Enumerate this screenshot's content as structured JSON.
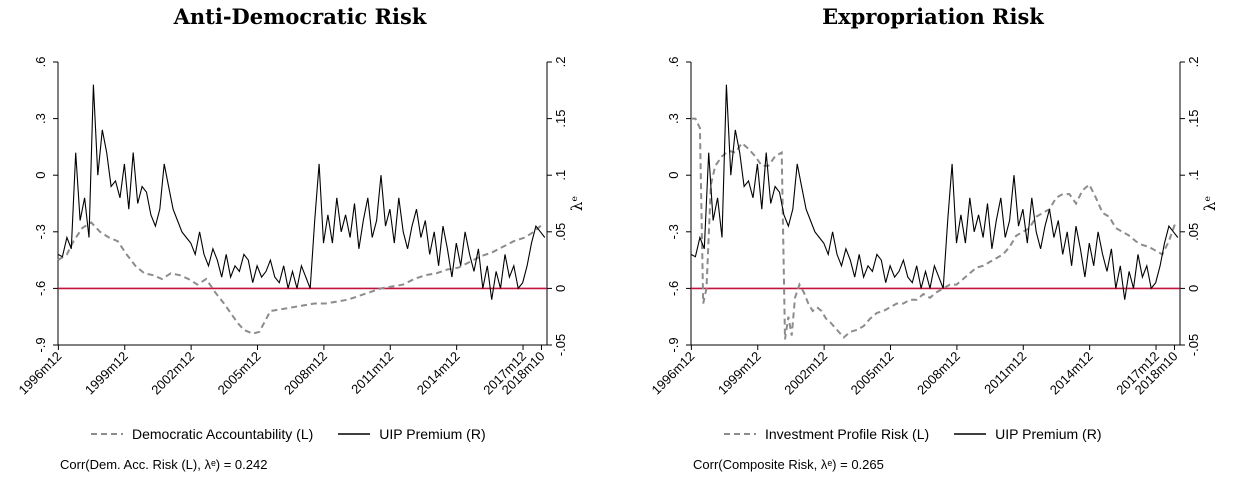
{
  "colors": {
    "uip": "#000000",
    "risk": "#8c8c8c",
    "zero_line": "#c0143c"
  },
  "chart_data": [
    {
      "type": "line",
      "title": "Anti-Democratic Risk",
      "x_ticks": [
        "1996m12",
        "1999m12",
        "2002m12",
        "2005m12",
        "2008m12",
        "2011m12",
        "2014m12",
        "2017m12",
        "2018m10"
      ],
      "xlim": [
        1996.9,
        2019.0
      ],
      "left_axis": {
        "ticks": [
          ".6",
          ".3",
          "0",
          "-.3",
          "-.6",
          "-.9"
        ],
        "ylim": [
          -0.9,
          0.6
        ]
      },
      "right_axis": {
        "label": "λᵉ",
        "ticks": [
          ".2",
          ".15",
          ".1",
          ".05",
          "0",
          "-.05"
        ],
        "ylim": [
          -0.05,
          0.2
        ]
      },
      "reference_line": {
        "axis": "right",
        "value": 0
      },
      "series": [
        {
          "name": "Democratic Accountability (L)",
          "axis": "left",
          "style": "dashed",
          "x": [
            1996.9,
            1997.3,
            1997.6,
            1998.0,
            1998.4,
            1998.8,
            1999.2,
            1999.6,
            2000.0,
            2000.4,
            2000.8,
            2001.2,
            2001.6,
            2002.0,
            2002.4,
            2002.8,
            2003.2,
            2003.6,
            2004.0,
            2004.4,
            2004.7,
            2005.0,
            2005.3,
            2005.7,
            2006.0,
            2006.5,
            2007.0,
            2007.5,
            2008.0,
            2008.5,
            2009.0,
            2009.5,
            2010.0,
            2010.5,
            2011.0,
            2011.5,
            2012.0,
            2012.5,
            2013.0,
            2013.5,
            2014.0,
            2014.5,
            2015.0,
            2015.5,
            2016.0,
            2016.5,
            2017.0,
            2017.5,
            2018.0,
            2018.4,
            2018.8
          ],
          "y": [
            -0.45,
            -0.42,
            -0.35,
            -0.28,
            -0.25,
            -0.3,
            -0.33,
            -0.35,
            -0.42,
            -0.48,
            -0.52,
            -0.53,
            -0.55,
            -0.52,
            -0.53,
            -0.55,
            -0.58,
            -0.55,
            -0.62,
            -0.68,
            -0.73,
            -0.78,
            -0.82,
            -0.84,
            -0.83,
            -0.72,
            -0.71,
            -0.7,
            -0.69,
            -0.68,
            -0.68,
            -0.67,
            -0.66,
            -0.64,
            -0.62,
            -0.6,
            -0.59,
            -0.58,
            -0.55,
            -0.53,
            -0.52,
            -0.5,
            -0.49,
            -0.46,
            -0.43,
            -0.41,
            -0.38,
            -0.35,
            -0.33,
            -0.3,
            -0.26
          ]
        },
        {
          "name": "UIP Premium (R)",
          "axis": "right",
          "style": "solid",
          "x": [
            1996.9,
            1997.1,
            1997.3,
            1997.5,
            1997.7,
            1997.9,
            1998.1,
            1998.3,
            1998.5,
            1998.7,
            1998.9,
            1999.1,
            1999.3,
            1999.5,
            1999.7,
            1999.9,
            2000.1,
            2000.3,
            2000.5,
            2000.7,
            2000.9,
            2001.1,
            2001.3,
            2001.5,
            2001.7,
            2001.9,
            2002.1,
            2002.3,
            2002.5,
            2002.7,
            2002.9,
            2003.1,
            2003.3,
            2003.5,
            2003.7,
            2003.9,
            2004.1,
            2004.3,
            2004.5,
            2004.7,
            2004.9,
            2005.1,
            2005.3,
            2005.5,
            2005.7,
            2005.9,
            2006.1,
            2006.3,
            2006.5,
            2006.7,
            2006.9,
            2007.1,
            2007.3,
            2007.5,
            2007.7,
            2007.9,
            2008.1,
            2008.3,
            2008.5,
            2008.7,
            2008.9,
            2009.1,
            2009.3,
            2009.5,
            2009.7,
            2009.9,
            2010.1,
            2010.3,
            2010.5,
            2010.7,
            2010.9,
            2011.1,
            2011.3,
            2011.5,
            2011.7,
            2011.9,
            2012.1,
            2012.3,
            2012.5,
            2012.7,
            2012.9,
            2013.1,
            2013.3,
            2013.5,
            2013.7,
            2013.9,
            2014.1,
            2014.3,
            2014.5,
            2014.7,
            2014.9,
            2015.1,
            2015.3,
            2015.5,
            2015.7,
            2015.9,
            2016.1,
            2016.3,
            2016.5,
            2016.7,
            2016.9,
            2017.1,
            2017.3,
            2017.5,
            2017.7,
            2017.9,
            2018.1,
            2018.3,
            2018.5,
            2018.7,
            2018.9
          ],
          "y": [
            0.03,
            0.028,
            0.045,
            0.035,
            0.12,
            0.06,
            0.08,
            0.045,
            0.18,
            0.1,
            0.14,
            0.12,
            0.09,
            0.095,
            0.08,
            0.11,
            0.07,
            0.12,
            0.075,
            0.09,
            0.085,
            0.065,
            0.055,
            0.07,
            0.11,
            0.09,
            0.07,
            0.06,
            0.05,
            0.045,
            0.04,
            0.03,
            0.05,
            0.03,
            0.02,
            0.035,
            0.025,
            0.01,
            0.03,
            0.01,
            0.02,
            0.015,
            0.03,
            0.025,
            0.005,
            0.02,
            0.01,
            0.015,
            0.025,
            0.01,
            0.005,
            0.02,
            0.0,
            0.015,
            0.0,
            0.02,
            0.01,
            0.0,
            0.06,
            0.11,
            0.04,
            0.065,
            0.04,
            0.08,
            0.05,
            0.065,
            0.045,
            0.075,
            0.035,
            0.06,
            0.08,
            0.045,
            0.06,
            0.1,
            0.055,
            0.07,
            0.04,
            0.08,
            0.05,
            0.035,
            0.055,
            0.07,
            0.045,
            0.06,
            0.03,
            0.05,
            0.02,
            0.055,
            0.035,
            0.01,
            0.04,
            0.02,
            0.05,
            0.03,
            0.015,
            0.035,
            0.0,
            0.02,
            -0.01,
            0.015,
            0.0,
            0.03,
            0.01,
            0.02,
            0.0,
            0.005,
            0.02,
            0.04,
            0.055,
            0.05,
            0.045
          ]
        }
      ],
      "legend": [
        "Democratic Accountability (L)",
        "UIP Premium (R)"
      ],
      "legend_position": "bottom",
      "note": "Corr(Dem. Acc. Risk (L), λᵉ) = 0.242"
    },
    {
      "type": "line",
      "title": "Expropriation Risk",
      "x_ticks": [
        "1996m12",
        "1999m12",
        "2002m12",
        "2005m12",
        "2008m12",
        "2011m12",
        "2014m12",
        "2017m12",
        "2018m10"
      ],
      "xlim": [
        1996.9,
        2019.0
      ],
      "left_axis": {
        "ticks": [
          ".6",
          ".3",
          "0",
          "-.3",
          "-.6",
          "-.9"
        ],
        "ylim": [
          -0.9,
          0.6
        ]
      },
      "right_axis": {
        "label": "λᵉ",
        "ticks": [
          ".2",
          ".15",
          ".1",
          ".05",
          "0",
          "-.05"
        ],
        "ylim": [
          -0.05,
          0.2
        ]
      },
      "reference_line": {
        "axis": "right",
        "value": 0
      },
      "series": [
        {
          "name": "Investment Profile Risk (L)",
          "axis": "left",
          "style": "dashed",
          "x": [
            1996.9,
            1997.1,
            1997.3,
            1997.45,
            1997.6,
            1997.8,
            1998.0,
            1998.3,
            1998.6,
            1998.9,
            1999.2,
            1999.5,
            1999.8,
            2000.1,
            2000.4,
            2000.7,
            2001.0,
            2001.15,
            2001.3,
            2001.45,
            2001.6,
            2001.8,
            2002.0,
            2002.2,
            2002.4,
            2002.6,
            2002.8,
            2003.0,
            2003.2,
            2003.5,
            2003.8,
            2004.1,
            2004.4,
            2004.7,
            2005.0,
            2005.3,
            2005.6,
            2005.9,
            2006.2,
            2006.5,
            2006.8,
            2007.1,
            2007.4,
            2007.7,
            2008.0,
            2008.3,
            2008.6,
            2008.9,
            2009.2,
            2009.5,
            2009.8,
            2010.1,
            2010.4,
            2010.7,
            2011.0,
            2011.3,
            2011.6,
            2011.9,
            2012.2,
            2012.5,
            2012.8,
            2013.1,
            2013.4,
            2013.7,
            2014.0,
            2014.3,
            2014.6,
            2014.9,
            2015.2,
            2015.5,
            2015.8,
            2016.1,
            2016.4,
            2016.7,
            2017.0,
            2017.3,
            2017.6,
            2017.9,
            2018.2,
            2018.5,
            2018.8
          ],
          "y": [
            0.3,
            0.3,
            0.25,
            -0.68,
            -0.6,
            -0.05,
            0.05,
            0.1,
            0.13,
            0.12,
            0.17,
            0.14,
            0.1,
            0.05,
            0.05,
            0.1,
            0.12,
            -0.87,
            -0.75,
            -0.85,
            -0.65,
            -0.58,
            -0.62,
            -0.68,
            -0.72,
            -0.7,
            -0.72,
            -0.76,
            -0.78,
            -0.82,
            -0.86,
            -0.83,
            -0.82,
            -0.8,
            -0.76,
            -0.73,
            -0.72,
            -0.7,
            -0.68,
            -0.68,
            -0.66,
            -0.66,
            -0.63,
            -0.65,
            -0.62,
            -0.6,
            -0.58,
            -0.58,
            -0.55,
            -0.52,
            -0.49,
            -0.48,
            -0.46,
            -0.44,
            -0.42,
            -0.38,
            -0.32,
            -0.3,
            -0.28,
            -0.22,
            -0.2,
            -0.18,
            -0.12,
            -0.1,
            -0.1,
            -0.15,
            -0.08,
            -0.05,
            -0.12,
            -0.2,
            -0.22,
            -0.28,
            -0.3,
            -0.32,
            -0.35,
            -0.37,
            -0.38,
            -0.4,
            -0.42,
            -0.35,
            -0.25
          ]
        },
        {
          "name": "UIP Premium (R)",
          "axis": "right",
          "style": "solid",
          "x": [
            1996.9,
            1997.1,
            1997.3,
            1997.5,
            1997.7,
            1997.9,
            1998.1,
            1998.3,
            1998.5,
            1998.7,
            1998.9,
            1999.1,
            1999.3,
            1999.5,
            1999.7,
            1999.9,
            2000.1,
            2000.3,
            2000.5,
            2000.7,
            2000.9,
            2001.1,
            2001.3,
            2001.5,
            2001.7,
            2001.9,
            2002.1,
            2002.3,
            2002.5,
            2002.7,
            2002.9,
            2003.1,
            2003.3,
            2003.5,
            2003.7,
            2003.9,
            2004.1,
            2004.3,
            2004.5,
            2004.7,
            2004.9,
            2005.1,
            2005.3,
            2005.5,
            2005.7,
            2005.9,
            2006.1,
            2006.3,
            2006.5,
            2006.7,
            2006.9,
            2007.1,
            2007.3,
            2007.5,
            2007.7,
            2007.9,
            2008.1,
            2008.3,
            2008.5,
            2008.7,
            2008.9,
            2009.1,
            2009.3,
            2009.5,
            2009.7,
            2009.9,
            2010.1,
            2010.3,
            2010.5,
            2010.7,
            2010.9,
            2011.1,
            2011.3,
            2011.5,
            2011.7,
            2011.9,
            2012.1,
            2012.3,
            2012.5,
            2012.7,
            2012.9,
            2013.1,
            2013.3,
            2013.5,
            2013.7,
            2013.9,
            2014.1,
            2014.3,
            2014.5,
            2014.7,
            2014.9,
            2015.1,
            2015.3,
            2015.5,
            2015.7,
            2015.9,
            2016.1,
            2016.3,
            2016.5,
            2016.7,
            2016.9,
            2017.1,
            2017.3,
            2017.5,
            2017.7,
            2017.9,
            2018.1,
            2018.3,
            2018.5,
            2018.7,
            2018.9
          ],
          "y": [
            0.03,
            0.028,
            0.045,
            0.035,
            0.12,
            0.06,
            0.08,
            0.045,
            0.18,
            0.1,
            0.14,
            0.12,
            0.09,
            0.095,
            0.08,
            0.11,
            0.07,
            0.12,
            0.075,
            0.09,
            0.085,
            0.065,
            0.055,
            0.07,
            0.11,
            0.09,
            0.07,
            0.06,
            0.05,
            0.045,
            0.04,
            0.03,
            0.05,
            0.03,
            0.02,
            0.035,
            0.025,
            0.01,
            0.03,
            0.01,
            0.02,
            0.015,
            0.03,
            0.025,
            0.005,
            0.02,
            0.01,
            0.015,
            0.025,
            0.01,
            0.005,
            0.02,
            0.0,
            0.015,
            0.0,
            0.02,
            0.01,
            0.0,
            0.06,
            0.11,
            0.04,
            0.065,
            0.04,
            0.08,
            0.05,
            0.065,
            0.045,
            0.075,
            0.035,
            0.06,
            0.08,
            0.045,
            0.06,
            0.1,
            0.055,
            0.07,
            0.04,
            0.08,
            0.05,
            0.035,
            0.055,
            0.07,
            0.045,
            0.06,
            0.03,
            0.05,
            0.02,
            0.055,
            0.035,
            0.01,
            0.04,
            0.02,
            0.05,
            0.03,
            0.015,
            0.035,
            0.0,
            0.02,
            -0.01,
            0.015,
            0.0,
            0.03,
            0.01,
            0.02,
            0.0,
            0.005,
            0.02,
            0.04,
            0.055,
            0.05,
            0.045
          ]
        }
      ],
      "legend": [
        "Investment Profile Risk (L)",
        "UIP Premium (R)"
      ],
      "legend_position": "bottom",
      "note": "Corr(Composite Risk, λᵉ) = 0.265"
    }
  ]
}
